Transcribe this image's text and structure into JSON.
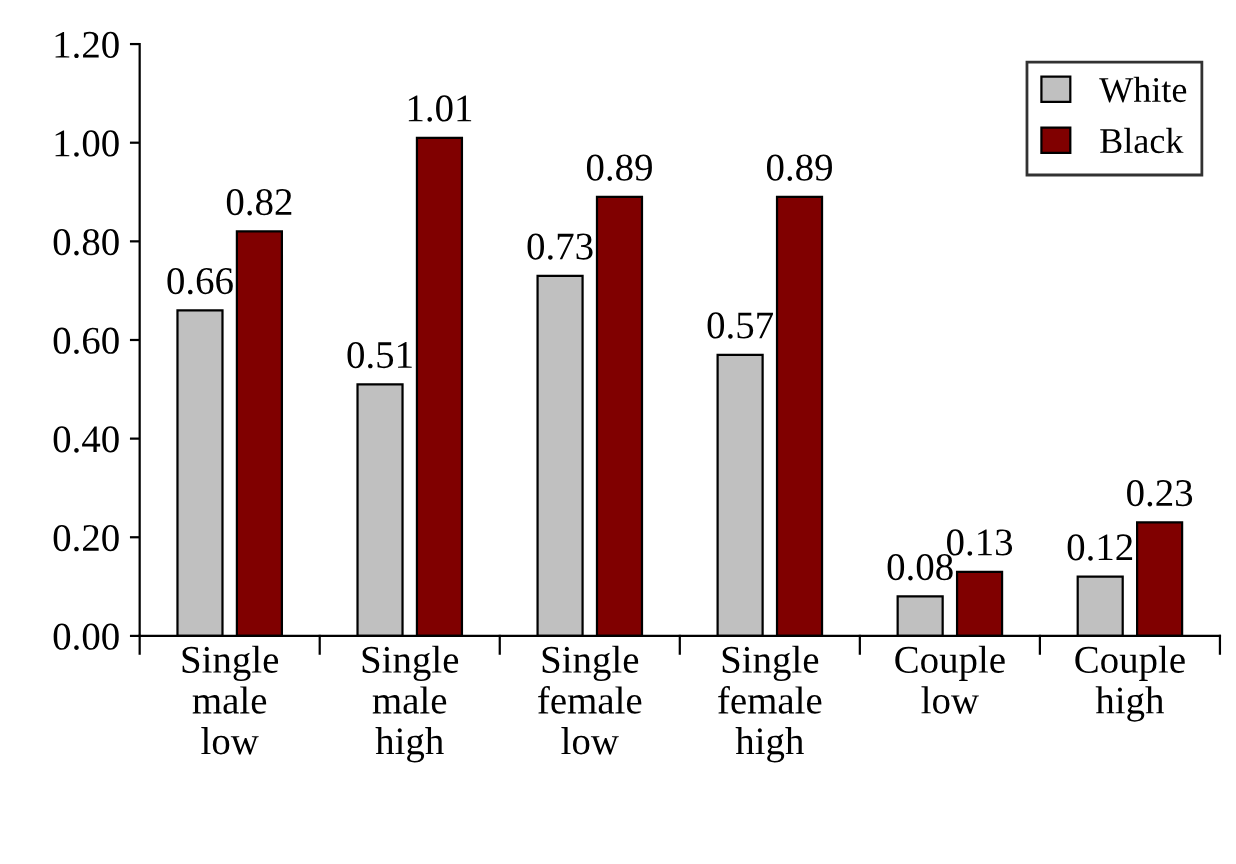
{
  "chart_data": {
    "type": "bar",
    "categories": [
      "Single\nmale\nlow",
      "Single\nmale\nhigh",
      "Single\nfemale\nlow",
      "Single\nfemale\nhigh",
      "Couple\nlow",
      "Couple\nhigh"
    ],
    "series": [
      {
        "name": "White",
        "color": "#c0c0c0",
        "values": [
          0.66,
          0.51,
          0.73,
          0.57,
          0.08,
          0.12
        ]
      },
      {
        "name": "Black",
        "color": "#800000",
        "values": [
          0.82,
          1.01,
          0.89,
          0.89,
          0.13,
          0.23
        ]
      }
    ],
    "ylim": [
      0,
      1.2
    ],
    "yticks": [
      {
        "value": 0,
        "label": "0.00"
      },
      {
        "value": 0.2,
        "label": "0.20"
      },
      {
        "value": 0.4,
        "label": "0.40"
      },
      {
        "value": 0.6,
        "label": "0.60"
      },
      {
        "value": 0.8,
        "label": "0.80"
      },
      {
        "value": 1.0,
        "label": "1.00"
      },
      {
        "value": 1.2,
        "label": "1.20"
      }
    ],
    "data_labels": true,
    "legend": "top right",
    "grid": false
  }
}
